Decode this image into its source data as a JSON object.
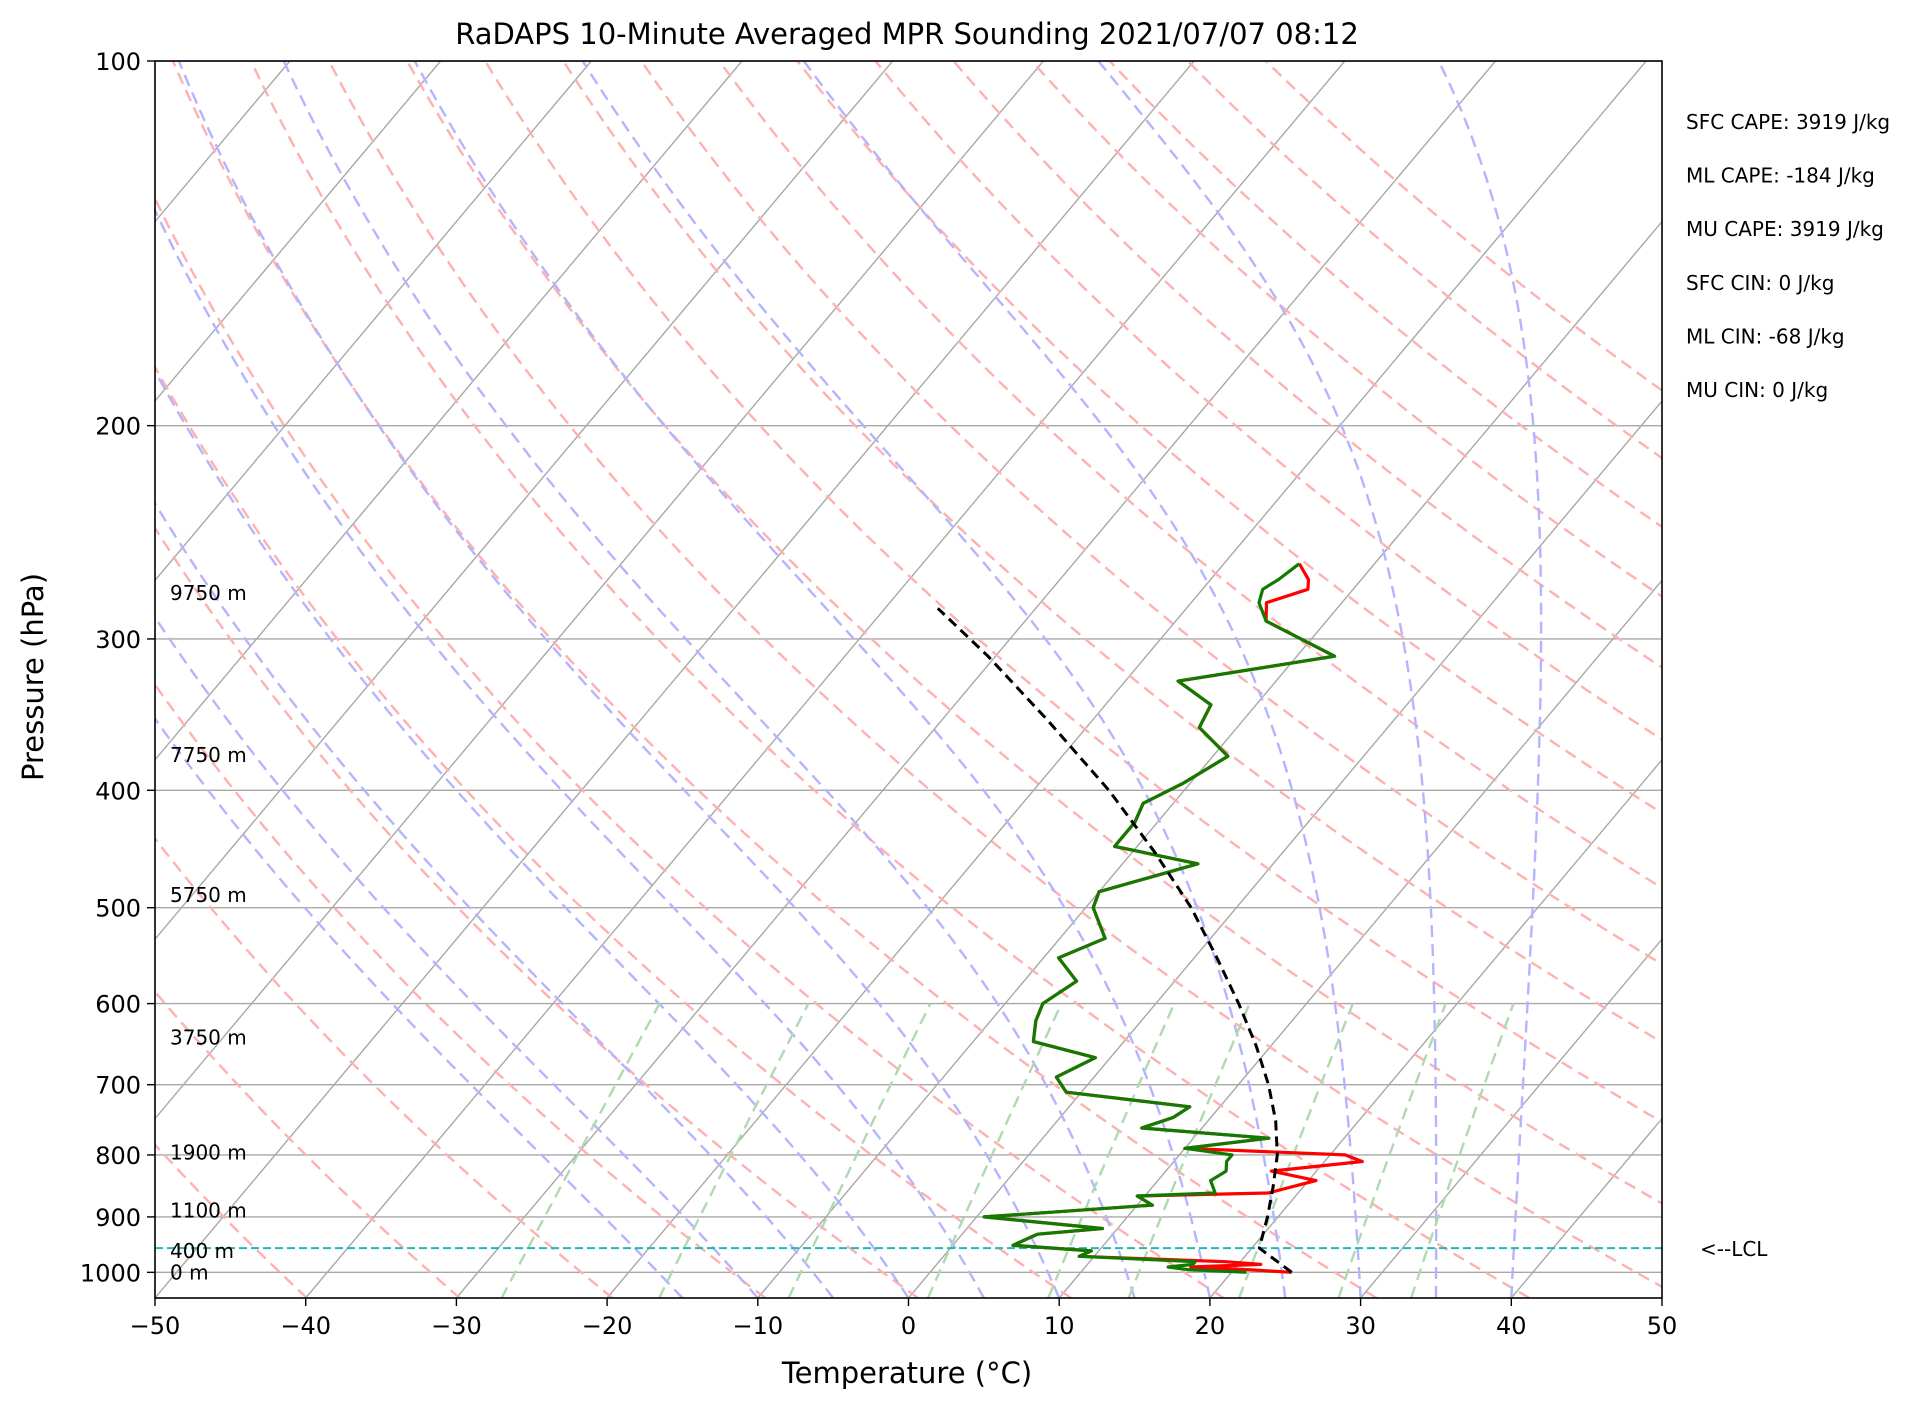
{
  "chart_data": {
    "type": "line",
    "subtype": "skew-t log-p sounding",
    "title": "RaDAPS 10-Minute Averaged MPR Sounding 2021/07/07 08:12",
    "xlabel": "Temperature (°C)",
    "ylabel": "Pressure (hPa)",
    "xlim": [
      -50,
      50
    ],
    "ylim": [
      1050,
      100
    ],
    "y_scale": "log",
    "x_ticks": [
      -50,
      -40,
      -30,
      -20,
      -10,
      0,
      10,
      20,
      30,
      40,
      50
    ],
    "x_tick_labels": [
      "−50",
      "−40",
      "−30",
      "−20",
      "−10",
      "0",
      "10",
      "20",
      "30",
      "40",
      "50"
    ],
    "y_ticks": [
      100,
      200,
      300,
      400,
      500,
      600,
      700,
      800,
      900,
      1000
    ],
    "y_tick_labels": [
      "100",
      "200",
      "300",
      "400",
      "500",
      "600",
      "700",
      "800",
      "900",
      "1000"
    ],
    "grid": true,
    "series": [
      {
        "key": "temperature",
        "color": "#ff0000",
        "points": [
          [
            1000,
            24.0
          ],
          [
            995,
            21.0
          ],
          [
            990,
            17.0
          ],
          [
            985,
            21.5
          ],
          [
            980,
            19.0
          ],
          [
            970,
            9.0
          ],
          [
            960,
            9.5
          ],
          [
            950,
            4.0
          ],
          [
            930,
            5.0
          ],
          [
            920,
            9.0
          ],
          [
            900,
            0.5
          ],
          [
            880,
            11.0
          ],
          [
            865,
            9.5
          ],
          [
            860,
            18.0
          ],
          [
            840,
            20.5
          ],
          [
            825,
            17.0
          ],
          [
            810,
            22.5
          ],
          [
            800,
            21.0
          ],
          [
            790,
            10.0
          ],
          [
            775,
            15.0
          ],
          [
            760,
            6.0
          ],
          [
            745,
            7.5
          ],
          [
            730,
            8.0
          ],
          [
            710,
            -1.0
          ],
          [
            690,
            -2.5
          ],
          [
            665,
            -1.0
          ],
          [
            645,
            -6.0
          ],
          [
            620,
            -7.0
          ],
          [
            600,
            -7.5
          ],
          [
            575,
            -6.5
          ],
          [
            550,
            -9.0
          ],
          [
            530,
            -7.0
          ],
          [
            500,
            -9.5
          ],
          [
            485,
            -10.0
          ],
          [
            460,
            -5.0
          ],
          [
            445,
            -11.5
          ],
          [
            425,
            -11.5
          ],
          [
            410,
            -12.0
          ],
          [
            395,
            -10.5
          ],
          [
            375,
            -9.0
          ],
          [
            355,
            -12.5
          ],
          [
            340,
            -13.0
          ],
          [
            325,
            -16.5
          ],
          [
            310,
            -7.5
          ],
          [
            290,
            -14.0
          ],
          [
            280,
            -15.0
          ],
          [
            273,
            -13.0
          ],
          [
            268,
            -13.5
          ],
          [
            260,
            -15.0
          ]
        ]
      },
      {
        "key": "dewpoint",
        "color": "#117a00",
        "points": [
          [
            1000,
            21.0
          ],
          [
            995,
            17.0
          ],
          [
            990,
            15.5
          ],
          [
            985,
            17.0
          ],
          [
            980,
            17.0
          ],
          [
            970,
            9.0
          ],
          [
            960,
            9.5
          ],
          [
            950,
            4.0
          ],
          [
            930,
            5.0
          ],
          [
            920,
            9.0
          ],
          [
            900,
            0.5
          ],
          [
            880,
            11.0
          ],
          [
            865,
            9.5
          ],
          [
            860,
            14.5
          ],
          [
            840,
            13.5
          ],
          [
            825,
            14.0
          ],
          [
            810,
            13.5
          ],
          [
            800,
            13.5
          ],
          [
            790,
            10.0
          ],
          [
            775,
            15.0
          ],
          [
            760,
            6.0
          ],
          [
            745,
            7.5
          ],
          [
            730,
            8.0
          ],
          [
            710,
            -1.0
          ],
          [
            690,
            -2.5
          ],
          [
            665,
            -1.0
          ],
          [
            645,
            -6.0
          ],
          [
            620,
            -7.0
          ],
          [
            600,
            -7.5
          ],
          [
            575,
            -6.5
          ],
          [
            550,
            -9.0
          ],
          [
            530,
            -7.0
          ],
          [
            500,
            -9.5
          ],
          [
            485,
            -10.0
          ],
          [
            460,
            -5.0
          ],
          [
            445,
            -11.5
          ],
          [
            425,
            -11.5
          ],
          [
            410,
            -12.0
          ],
          [
            395,
            -10.5
          ],
          [
            375,
            -9.0
          ],
          [
            355,
            -12.5
          ],
          [
            340,
            -13.0
          ],
          [
            325,
            -16.5
          ],
          [
            310,
            -7.5
          ],
          [
            290,
            -14.0
          ],
          [
            280,
            -15.5
          ],
          [
            273,
            -16.0
          ],
          [
            268,
            -15.5
          ],
          [
            260,
            -15.0
          ]
        ]
      },
      {
        "key": "parcel",
        "color": "#000000",
        "dashed": true,
        "points": [
          [
            1000,
            24.0
          ],
          [
            955,
            20.5
          ],
          [
            900,
            19.3
          ],
          [
            850,
            18.0
          ],
          [
            800,
            16.5
          ],
          [
            750,
            14.5
          ],
          [
            700,
            12.0
          ],
          [
            650,
            9.0
          ],
          [
            600,
            5.5
          ],
          [
            550,
            1.5
          ],
          [
            500,
            -3.0
          ],
          [
            450,
            -8.5
          ],
          [
            400,
            -15.0
          ],
          [
            350,
            -23.0
          ],
          [
            310,
            -30.5
          ],
          [
            283,
            -36.5
          ]
        ]
      }
    ],
    "lcl_pressure": 955,
    "lcl_label": "<--LCL",
    "height_labels": [
      {
        "label": "9750 m",
        "p": 275
      },
      {
        "label": "7750 m",
        "p": 374
      },
      {
        "label": "5750 m",
        "p": 488
      },
      {
        "label": "3750 m",
        "p": 640
      },
      {
        "label": "1900 m",
        "p": 796
      },
      {
        "label": "1100 m",
        "p": 889
      },
      {
        "label": "400 m",
        "p": 960
      },
      {
        "label": "0 m",
        "p": 1000
      }
    ],
    "indices": [
      "SFC CAPE: 3919 J/kg",
      "ML CAPE: -184 J/kg",
      "MU CAPE: 3919 J/kg",
      "SFC CIN: 0 J/kg",
      "ML CIN: -68 J/kg",
      "MU CIN: 0 J/kg"
    ],
    "background_lines": {
      "isotherms_c": [
        -140,
        -130,
        -120,
        -110,
        -100,
        -90,
        -80,
        -70,
        -60,
        -50,
        -40,
        -30,
        -20,
        -10,
        0,
        10,
        20,
        30,
        40,
        50
      ],
      "dry_adiabats_theta_k": [
        230,
        240,
        250,
        260,
        270,
        280,
        290,
        300,
        310,
        320,
        330,
        340,
        350,
        360,
        370,
        380,
        390,
        400,
        410,
        420,
        430,
        440
      ],
      "moist_adiabats_start_c": [
        -15,
        -10,
        -5,
        0,
        5,
        10,
        15,
        20,
        25,
        30,
        35,
        40
      ],
      "mixing_ratios_gkg": [
        0.4,
        1,
        2,
        4,
        7,
        10,
        16,
        24,
        32
      ]
    },
    "colors": {
      "isotherm": "#a8a8a8",
      "dry_adiabat": "#ffb0b0",
      "moist_adiabat": "#b4b4ff",
      "mixing_ratio": "#b0d9b0",
      "lcl_line": "#20b8b8"
    }
  }
}
